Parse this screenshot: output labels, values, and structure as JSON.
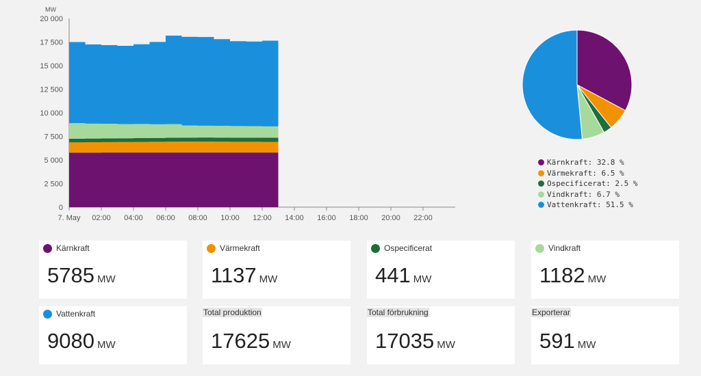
{
  "chart_data": [
    {
      "type": "area",
      "stacked": true,
      "unit_label": "MW",
      "ylim": [
        0,
        20000
      ],
      "y_ticks": [
        0,
        2500,
        5000,
        7500,
        10000,
        12500,
        15000,
        17500,
        20000
      ],
      "y_tick_labels": [
        "0",
        "2 500",
        "5 000",
        "7 500",
        "10 000",
        "12 500",
        "15 000",
        "17 500",
        "20 000"
      ],
      "x_range_hours": [
        0,
        24
      ],
      "x_tick_hours": [
        0,
        2,
        4,
        6,
        8,
        10,
        12,
        14,
        16,
        18,
        20,
        22
      ],
      "x_tick_labels": [
        "7. May",
        "02:00",
        "04:00",
        "06:00",
        "08:00",
        "10:00",
        "12:00",
        "14:00",
        "16:00",
        "18:00",
        "20:00",
        "22:00"
      ],
      "x_hours": [
        0,
        1,
        2,
        3,
        4,
        5,
        6,
        7,
        8,
        9,
        10,
        11,
        12,
        13
      ],
      "series": [
        {
          "name": "Kärnkraft",
          "color": "#6e1270",
          "values": [
            5780,
            5780,
            5785,
            5785,
            5785,
            5785,
            5785,
            5785,
            5785,
            5785,
            5785,
            5785,
            5785,
            5785
          ]
        },
        {
          "name": "Värmekraft",
          "color": "#f39200",
          "values": [
            1090,
            1100,
            1110,
            1120,
            1130,
            1140,
            1150,
            1160,
            1160,
            1150,
            1140,
            1140,
            1137,
            1137
          ]
        },
        {
          "name": "Ospecificerat",
          "color": "#1e6e3c",
          "values": [
            380,
            390,
            390,
            400,
            400,
            410,
            420,
            430,
            440,
            440,
            440,
            441,
            441,
            441
          ]
        },
        {
          "name": "Vindkraft",
          "color": "#a8d99c",
          "values": [
            1650,
            1580,
            1560,
            1500,
            1500,
            1450,
            1450,
            1280,
            1250,
            1250,
            1230,
            1220,
            1200,
            1182
          ]
        },
        {
          "name": "Vattenkraft",
          "color": "#1a90dd",
          "values": [
            8600,
            8400,
            8330,
            8300,
            8450,
            8720,
            9370,
            9400,
            9400,
            9180,
            9000,
            8970,
            9080,
            9080
          ]
        }
      ]
    },
    {
      "type": "pie",
      "slices": [
        {
          "name": "Kärnkraft",
          "value": 32.8,
          "label": "Kärnkraft: 32.8 %",
          "color": "#6e1270"
        },
        {
          "name": "Värmekraft",
          "value": 6.5,
          "label": "Värmekraft: 6.5 %",
          "color": "#f39200"
        },
        {
          "name": "Ospecificerat",
          "value": 2.5,
          "label": "Ospecificerat: 2.5 %",
          "color": "#1e6e3c"
        },
        {
          "name": "Vindkraft",
          "value": 6.7,
          "label": "Vindkraft: 6.7 %",
          "color": "#a8d99c"
        },
        {
          "name": "Vattenkraft",
          "value": 51.5,
          "label": "Vattenkraft: 51.5 %",
          "color": "#1a90dd"
        }
      ]
    }
  ],
  "cards": [
    {
      "title": "Kärnkraft",
      "value": "5785",
      "unit": "MW",
      "dot_color": "#6e1270"
    },
    {
      "title": "Värmekraft",
      "value": "1137",
      "unit": "MW",
      "dot_color": "#f39200"
    },
    {
      "title": "Ospecificerat",
      "value": "441",
      "unit": "MW",
      "dot_color": "#1e6e3c"
    },
    {
      "title": "Vindkraft",
      "value": "1182",
      "unit": "MW",
      "dot_color": "#a8d99c"
    },
    {
      "title": "Vattenkraft",
      "value": "9080",
      "unit": "MW",
      "dot_color": "#1a90dd"
    },
    {
      "title": "Total produktion",
      "value": "17625",
      "unit": "MW"
    },
    {
      "title": "Total förbrukning",
      "value": "17035",
      "unit": "MW"
    },
    {
      "title": "Exporterar",
      "value": "591",
      "unit": "MW"
    }
  ]
}
